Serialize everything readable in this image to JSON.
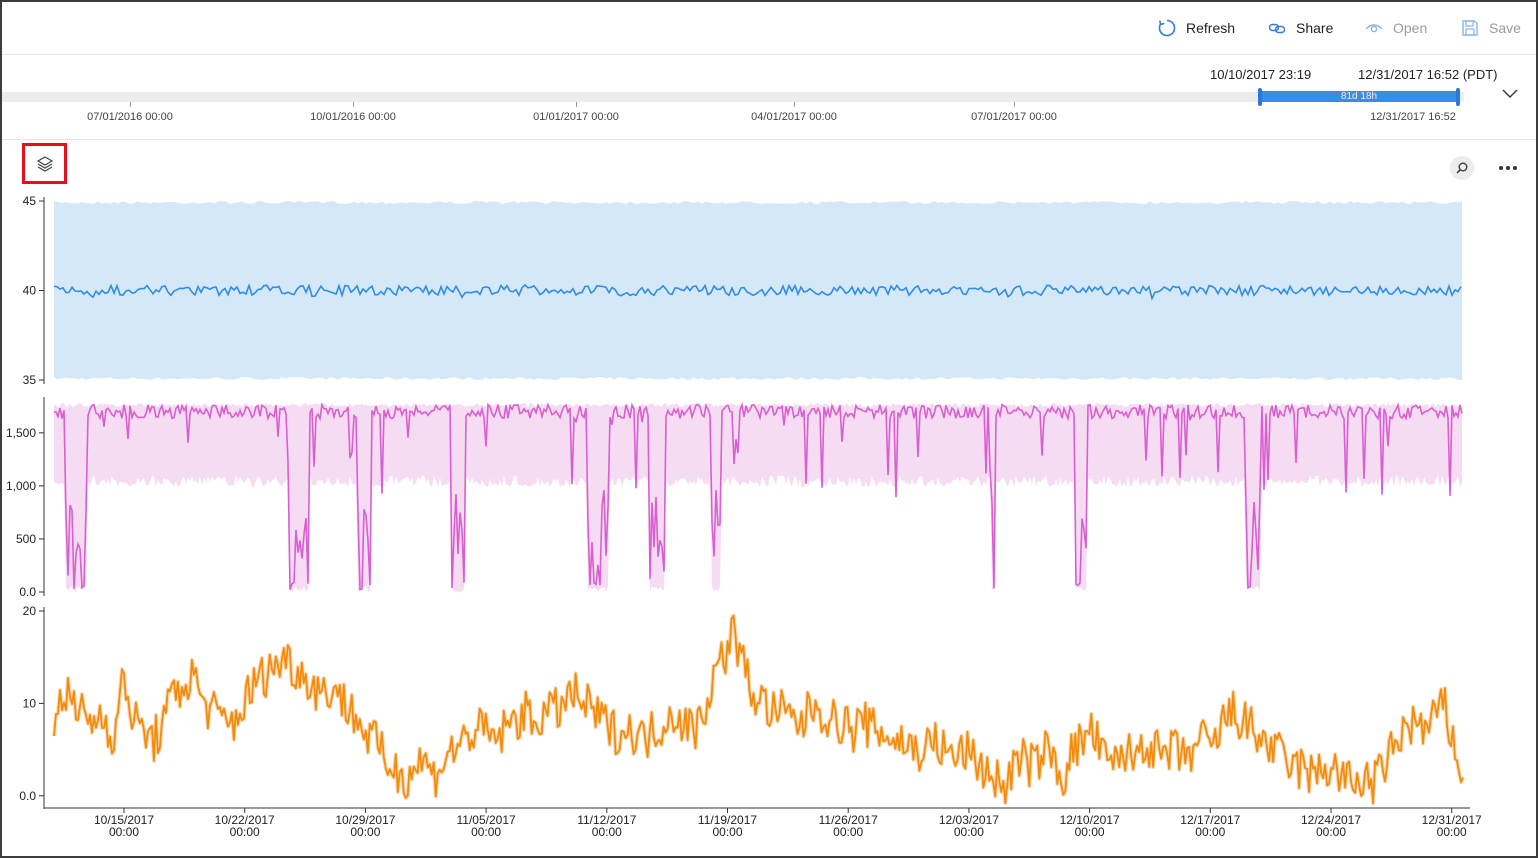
{
  "toolbar": {
    "refresh_label": "Refresh",
    "share_label": "Share",
    "open_label": "Open",
    "save_label": "Save",
    "icons": [
      "refresh-icon",
      "share-icon",
      "open-icon",
      "save-icon"
    ]
  },
  "brush": {
    "from_label": "10/10/2017 23:19",
    "to_label": "12/31/2017 16:52 (PDT)",
    "selection_label": "81d 18h",
    "axis_labels": [
      "07/01/2016 00:00",
      "10/01/2016 00:00",
      "01/01/2017 00:00",
      "04/01/2017 00:00",
      "07/01/2017 00:00",
      "12/31/2017 16:52"
    ]
  },
  "colors": {
    "accent": "#3a8ce6",
    "series_blue": "#2f8de4",
    "band_blue": "#d5e8f8",
    "series_magenta": "#d95fd0",
    "band_magenta": "#f5dcf3",
    "series_orange": "#f28c0f",
    "band_orange": "#fbd8b0",
    "highlight_border": "#e0121c"
  },
  "controls": {
    "layers_icon": "layers-icon",
    "zoom_icon": "zoom-icon",
    "more_icon": "more-icon"
  },
  "chart_data": {
    "type": "line",
    "x_range": [
      "10/10/2017 23:19",
      "12/31/2017 16:52"
    ],
    "x_tick_labels": [
      {
        "date": "10/15/2017",
        "time": "00:00"
      },
      {
        "date": "10/22/2017",
        "time": "00:00"
      },
      {
        "date": "10/29/2017",
        "time": "00:00"
      },
      {
        "date": "11/05/2017",
        "time": "00:00"
      },
      {
        "date": "11/12/2017",
        "time": "00:00"
      },
      {
        "date": "11/19/2017",
        "time": "00:00"
      },
      {
        "date": "11/26/2017",
        "time": "00:00"
      },
      {
        "date": "12/03/2017",
        "time": "00:00"
      },
      {
        "date": "12/10/2017",
        "time": "00:00"
      },
      {
        "date": "12/17/2017",
        "time": "00:00"
      },
      {
        "date": "12/24/2017",
        "time": "00:00"
      },
      {
        "date": "12/31/2017",
        "time": "00:00"
      }
    ],
    "panels": [
      {
        "ylim": [
          35,
          45
        ],
        "y_tick_labels": [
          "45",
          "40",
          "35"
        ],
        "y_ticks": [
          45,
          40,
          35
        ],
        "band": [
          35,
          45
        ],
        "mean": 40,
        "color": "#2f8de4"
      },
      {
        "ylim": [
          0,
          1800
        ],
        "y_tick_labels": [
          "1,500",
          "1,000",
          "500",
          "0.0"
        ],
        "y_ticks": [
          1500,
          1000,
          500,
          0
        ],
        "band_max": 1780,
        "high_level": 1700,
        "color": "#d95fd0"
      },
      {
        "ylim": [
          -1,
          20
        ],
        "y_tick_labels": [
          "20",
          "10",
          "0.0"
        ],
        "y_ticks": [
          20,
          10,
          0
        ],
        "color": "#f28c0f",
        "values": [
          8,
          12,
          9,
          9,
          8,
          9,
          6,
          13,
          8,
          7,
          6,
          8,
          11,
          12,
          13,
          10,
          9,
          8,
          8,
          10,
          12,
          13,
          14,
          15,
          14,
          13,
          12,
          11,
          12,
          10,
          9,
          7,
          6,
          4,
          3,
          2,
          3,
          4,
          2,
          4,
          5,
          6,
          7,
          7,
          6,
          7,
          8,
          9,
          8,
          9,
          9,
          10,
          11,
          10,
          9,
          8,
          7,
          7,
          7,
          6,
          7,
          8,
          9,
          8,
          7,
          9,
          13,
          15,
          18,
          14,
          11,
          10,
          9,
          9,
          8,
          8,
          10,
          9,
          8,
          8,
          7,
          8,
          7,
          7,
          6,
          6,
          5,
          5,
          6,
          5,
          4,
          5,
          4,
          3,
          2,
          1,
          3,
          4,
          3,
          5,
          4,
          2,
          5,
          6,
          7,
          4,
          3,
          5,
          4,
          6,
          5,
          4,
          5,
          4,
          5,
          6,
          5,
          8,
          9,
          8,
          7,
          6,
          5,
          4,
          3,
          3,
          2,
          3,
          3,
          2,
          1,
          2,
          1,
          3,
          5,
          7,
          8,
          7,
          8,
          10,
          6,
          2
        ]
      }
    ]
  }
}
